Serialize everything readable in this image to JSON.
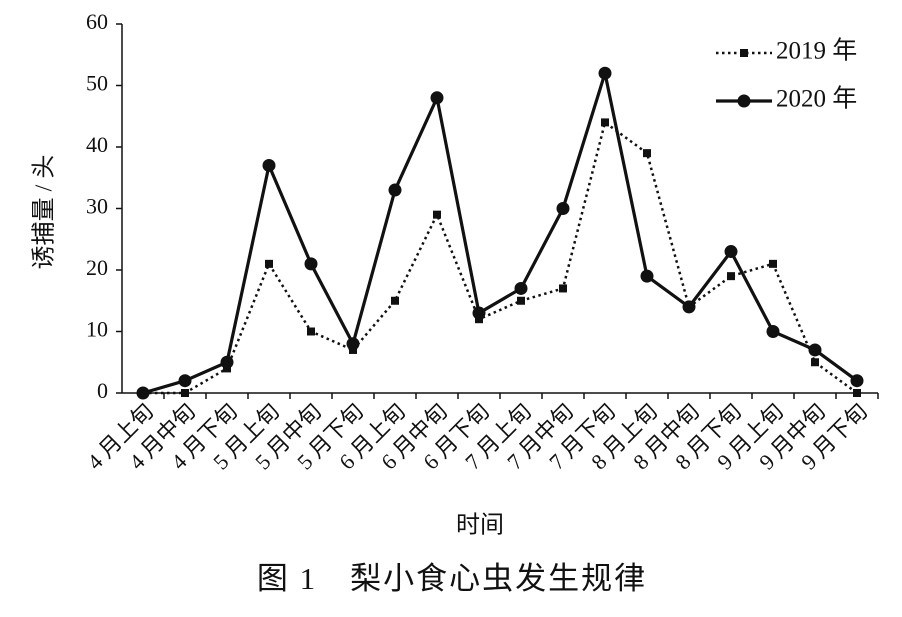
{
  "chart_data": {
    "type": "line",
    "caption": "图 1　梨小食心虫发生规律",
    "x_label": "时间",
    "y_label": "诱捕量 / 头",
    "categories": [
      "4 月上旬",
      "4 月中旬",
      "4 月下旬",
      "5 月上旬",
      "5 月中旬",
      "5 月下旬",
      "6 月上旬",
      "6 月中旬",
      "6 月下旬",
      "7 月上旬",
      "7 月中旬",
      "7 月下旬",
      "8 月上旬",
      "8 月中旬",
      "8 月下旬",
      "9 月上旬",
      "9 月中旬",
      "9 月下旬"
    ],
    "series": [
      {
        "name": "2019 年",
        "color": "#111111",
        "dash": "dotted",
        "marker": "square",
        "values": [
          0,
          0,
          4,
          21,
          10,
          7,
          15,
          29,
          12,
          15,
          17,
          44,
          39,
          14,
          19,
          21,
          5,
          0
        ]
      },
      {
        "name": "2020 年",
        "color": "#111111",
        "dash": "solid",
        "marker": "circle",
        "values": [
          0,
          2,
          5,
          37,
          21,
          8,
          33,
          48,
          13,
          17,
          30,
          52,
          19,
          14,
          23,
          10,
          7,
          2
        ]
      }
    ],
    "ylim": [
      0,
      60
    ],
    "yticks": [
      0,
      10,
      20,
      30,
      40,
      50,
      60
    ],
    "grid": false,
    "legend": "upper right"
  }
}
